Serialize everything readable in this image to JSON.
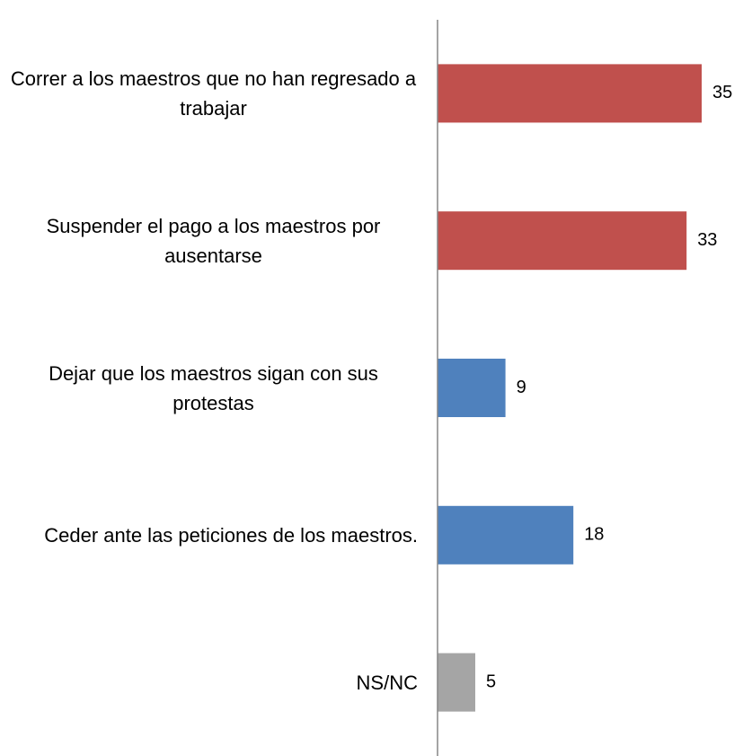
{
  "chart_data": {
    "type": "bar",
    "orientation": "horizontal",
    "categories": [
      "Correr a los maestros que no han regresado a trabajar",
      "Suspender el pago a los maestros por ausentarse",
      "Dejar que los maestros sigan con sus protestas",
      "Ceder ante las peticiones de los maestros.",
      "NS/NC"
    ],
    "values": [
      35,
      33,
      9,
      18,
      5
    ],
    "colors": [
      "#c0504d",
      "#c0504d",
      "#4f81bd",
      "#4f81bd",
      "#a5a5a5"
    ]
  }
}
